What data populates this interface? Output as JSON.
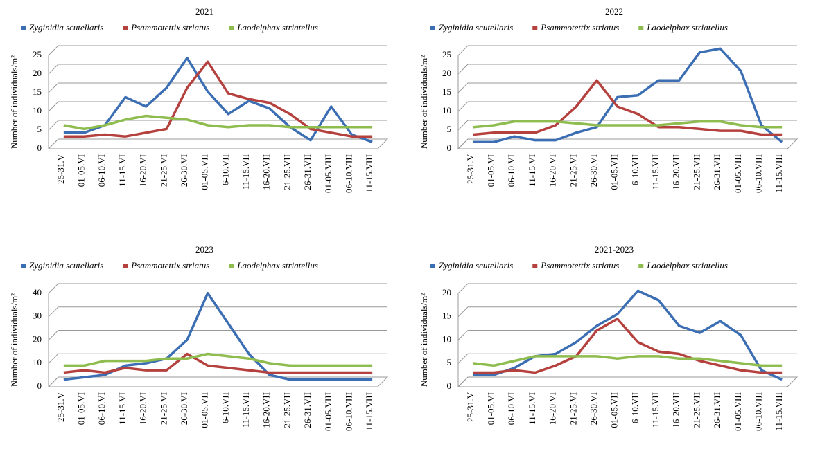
{
  "chart_data": [
    {
      "type": "line",
      "title": "2021",
      "y_label": "Number of individuals/m²",
      "categories": [
        "25-31.V",
        "01-05.VI",
        "06-10.VI",
        "11-15.VI",
        "16-20.VI",
        "21-25.VI",
        "26-30.VI",
        "01-05.VII",
        "6-10.VII",
        "11-15.VII",
        "16-20.VII",
        "21-25.VII",
        "26-31.VII",
        "01-05.VIII",
        "06-10.VIII",
        "11-15.VIII"
      ],
      "series": [
        {
          "name": "Zyginidia scutellaris",
          "color": "#3c6eb4",
          "values": [
            3,
            3,
            5,
            12.5,
            10,
            15,
            23,
            14,
            8,
            11.5,
            9.5,
            4.5,
            1,
            10,
            2.5,
            0.5
          ]
        },
        {
          "name": "Psammotettix striatus",
          "color": "#b5413e",
          "values": [
            2,
            2,
            2.5,
            2,
            3,
            4,
            15,
            22,
            13.5,
            12,
            11,
            8,
            4,
            3,
            2,
            2
          ]
        },
        {
          "name": "Laodelphax striatellus",
          "color": "#8fbc4f",
          "values": [
            5,
            4,
            5,
            6.5,
            7.5,
            7,
            6.5,
            5,
            4.5,
            5,
            5,
            4.5,
            4.5,
            4.5,
            4.5,
            4.5
          ]
        }
      ],
      "ylim": [
        0,
        25
      ],
      "yticks": [
        0,
        5,
        10,
        15,
        20,
        25
      ],
      "grid": true
    },
    {
      "type": "line",
      "title": "2022",
      "y_label": "Number of individuals/m²",
      "categories": [
        "25-31.V",
        "01-05.VI",
        "06-10.VI",
        "11-15.VI",
        "16-20.VI",
        "21-25.VI",
        "26-30.VI",
        "01-05.VII",
        "6-10.VII",
        "11-15.VII",
        "16-20.VII",
        "21-25.VII",
        "26-31.VII",
        "01-05.VIII",
        "06-10.VIII",
        "11-15.VIII"
      ],
      "series": [
        {
          "name": "Zyginidia scutellaris",
          "color": "#3c6eb4",
          "values": [
            0.5,
            0.5,
            2,
            1,
            1,
            3,
            4.5,
            12.5,
            13,
            17,
            17,
            24.5,
            25.5,
            19.5,
            5,
            0.5
          ]
        },
        {
          "name": "Psammotettix striatus",
          "color": "#b5413e",
          "values": [
            2.5,
            3,
            3,
            3,
            5,
            10,
            17,
            10,
            8,
            4.5,
            4.5,
            4,
            3.5,
            3.5,
            2.5,
            2.5
          ]
        },
        {
          "name": "Laodelphax striatellus",
          "color": "#8fbc4f",
          "values": [
            4.5,
            5,
            6,
            6,
            6,
            5.5,
            5,
            5,
            5,
            5,
            5.5,
            6,
            6,
            5,
            4.5,
            4.5
          ]
        }
      ],
      "ylim": [
        0,
        25
      ],
      "yticks": [
        0,
        5,
        10,
        15,
        20,
        25
      ],
      "grid": true
    },
    {
      "type": "line",
      "title": "2023",
      "y_label": "Number of individuals/m²",
      "categories": [
        "25-31.V",
        "01-05.VI",
        "06-10.VI",
        "11-15.VI",
        "16-20.VI",
        "21-25.VI",
        "26-30.VI",
        "01-05.VII",
        "6-10.VII",
        "11-15.VII",
        "16-20.VII",
        "21-25.VII",
        "26-31.VII",
        "01-05.VIII",
        "06-10.VIII",
        "11-15.VIII"
      ],
      "series": [
        {
          "name": "Zyginidia scutellaris",
          "color": "#3c6eb4",
          "values": [
            1,
            2,
            3,
            7,
            8,
            10,
            18,
            38,
            25,
            12,
            3,
            1,
            1,
            1,
            1,
            1
          ]
        },
        {
          "name": "Psammotettix striatus",
          "color": "#b5413e",
          "values": [
            4,
            5,
            4,
            6,
            5,
            5,
            12,
            7,
            6,
            5,
            4,
            4,
            4,
            4,
            4,
            4
          ]
        },
        {
          "name": "Laodelphax striatellus",
          "color": "#8fbc4f",
          "values": [
            7,
            7,
            9,
            9,
            9,
            10,
            10,
            12,
            11,
            10,
            8,
            7,
            7,
            7,
            7,
            7
          ]
        }
      ],
      "ylim": [
        0,
        40
      ],
      "yticks": [
        0,
        10,
        20,
        30,
        40
      ],
      "grid": true
    },
    {
      "type": "line",
      "title": "2021-2023",
      "y_label": "Number of individuals/m²",
      "categories": [
        "25-31.V",
        "01-05.VI",
        "06-10.VI",
        "11-15.VI",
        "16-20.VI",
        "21-25.VI",
        "26-30.VI",
        "01-05.VII",
        "6-10.VII",
        "11-15.VII",
        "16-20.VII",
        "21-25.VII",
        "26-31.VII",
        "01-05.VIII",
        "06-10.VIII",
        "11-15.VIII"
      ],
      "series": [
        {
          "name": "Zyginidia scutellaris",
          "color": "#3c6eb4",
          "values": [
            1.5,
            1.5,
            3,
            5.5,
            6,
            8.5,
            12,
            14.5,
            19.5,
            17.5,
            12,
            10.5,
            13,
            10,
            2.5,
            0.5
          ]
        },
        {
          "name": "Psammotettix striatus",
          "color": "#b5413e",
          "values": [
            2,
            2,
            2.5,
            2,
            3.5,
            5.5,
            11,
            13.5,
            8.5,
            6.5,
            6,
            4.5,
            3.5,
            2.5,
            2,
            2
          ]
        },
        {
          "name": "Laodelphax striatellus",
          "color": "#8fbc4f",
          "values": [
            4,
            3.5,
            4.5,
            5.5,
            5.5,
            5.5,
            5.5,
            5,
            5.5,
            5.5,
            5,
            5,
            4.5,
            4,
            3.5,
            3.5
          ]
        }
      ],
      "ylim": [
        0,
        20
      ],
      "yticks": [
        0,
        5,
        10,
        15,
        20
      ],
      "grid": true
    }
  ]
}
